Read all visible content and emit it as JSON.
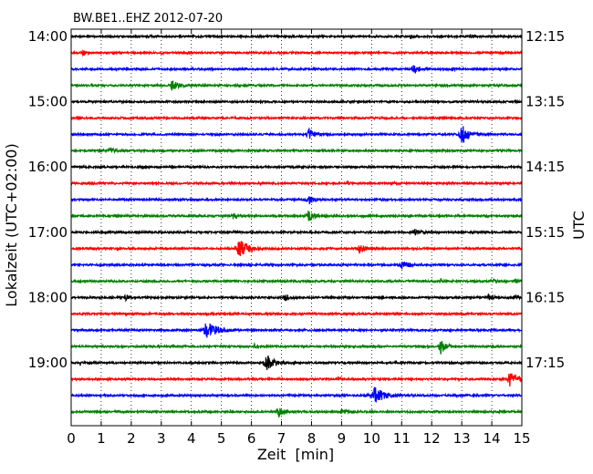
{
  "chart_data": {
    "type": "line",
    "title": "BW.BE1..EHZ 2012-07-20",
    "xlabel": "Zeit  [min]",
    "ylabel_left": "Lokalzeit (UTC+02:00)",
    "ylabel_right": "UTC",
    "xlim": [
      0,
      15
    ],
    "x_ticks": [
      0,
      1,
      2,
      3,
      4,
      5,
      6,
      7,
      8,
      9,
      10,
      11,
      12,
      13,
      14,
      15
    ],
    "x_tick_labels": [
      "0",
      "1",
      "2",
      "3",
      "4",
      "5",
      "6",
      "7",
      "8",
      "9",
      "10",
      "11",
      "12",
      "13",
      "14",
      "15"
    ],
    "y_tick_labels_left": [
      "14:00",
      "15:00",
      "16:00",
      "17:00",
      "18:00",
      "19:00"
    ],
    "y_tick_labels_right": [
      "12:15",
      "13:15",
      "14:15",
      "15:15",
      "16:15",
      "17:15"
    ],
    "grid": "vertical-dotted",
    "trace_colors": [
      "#000000",
      "#ff0000",
      "#0000ff",
      "#008000"
    ],
    "series": [
      {
        "start": "14:00",
        "color": "#000000",
        "events": [
          {
            "t": 2.6,
            "amp": 0.1,
            "dur": 0.12
          },
          {
            "t": 11.3,
            "amp": 0.25,
            "dur": 0.15
          },
          {
            "t": 13.3,
            "amp": 0.3,
            "dur": 0.2
          }
        ]
      },
      {
        "start": "14:15",
        "color": "#ff0000",
        "events": [
          {
            "t": 0.4,
            "amp": 0.45,
            "dur": 0.15
          },
          {
            "t": 3.0,
            "amp": 0.12,
            "dur": 0.1
          }
        ]
      },
      {
        "start": "14:30",
        "color": "#0000ff",
        "events": [
          {
            "t": 8.1,
            "amp": 0.2,
            "dur": 0.1
          },
          {
            "t": 11.4,
            "amp": 0.55,
            "dur": 0.35
          },
          {
            "t": 12.7,
            "amp": 0.3,
            "dur": 0.15
          },
          {
            "t": 15.0,
            "amp": 0.25,
            "dur": 0.1
          }
        ]
      },
      {
        "start": "14:45",
        "color": "#008000",
        "events": [
          {
            "t": 3.35,
            "amp": 0.65,
            "dur": 0.5
          }
        ]
      },
      {
        "start": "15:00",
        "color": "#000000",
        "events": []
      },
      {
        "start": "15:15",
        "color": "#ff0000",
        "events": []
      },
      {
        "start": "15:30",
        "color": "#0000ff",
        "events": [
          {
            "t": 7.9,
            "amp": 0.9,
            "dur": 0.35
          },
          {
            "t": 13.0,
            "amp": 1.4,
            "dur": 0.4
          }
        ]
      },
      {
        "start": "15:45",
        "color": "#008000",
        "events": [
          {
            "t": 1.3,
            "amp": 0.35,
            "dur": 0.4
          },
          {
            "t": 2.3,
            "amp": 0.15,
            "dur": 0.15
          }
        ]
      },
      {
        "start": "16:00",
        "color": "#000000",
        "events": [
          {
            "t": 2.4,
            "amp": 0.12,
            "dur": 0.1
          },
          {
            "t": 7.4,
            "amp": 0.1,
            "dur": 0.1
          }
        ]
      },
      {
        "start": "16:15",
        "color": "#ff0000",
        "events": [
          {
            "t": 6.3,
            "amp": 0.2,
            "dur": 0.1
          },
          {
            "t": 9.2,
            "amp": 0.3,
            "dur": 0.1
          },
          {
            "t": 10.7,
            "amp": 0.2,
            "dur": 0.1
          }
        ]
      },
      {
        "start": "16:30",
        "color": "#0000ff",
        "events": [
          {
            "t": 7.9,
            "amp": 0.6,
            "dur": 0.35
          }
        ]
      },
      {
        "start": "16:45",
        "color": "#008000",
        "events": [
          {
            "t": 5.4,
            "amp": 0.45,
            "dur": 0.3
          },
          {
            "t": 7.9,
            "amp": 0.8,
            "dur": 0.4
          },
          {
            "t": 11.3,
            "amp": 0.15,
            "dur": 0.1
          },
          {
            "t": 13.8,
            "amp": 0.12,
            "dur": 0.1
          }
        ]
      },
      {
        "start": "17:00",
        "color": "#000000",
        "events": [
          {
            "t": 5.4,
            "amp": 0.2,
            "dur": 0.15
          },
          {
            "t": 11.4,
            "amp": 0.45,
            "dur": 0.4
          }
        ]
      },
      {
        "start": "17:15",
        "color": "#ff0000",
        "events": [
          {
            "t": 5.6,
            "amp": 1.3,
            "dur": 0.6
          },
          {
            "t": 9.6,
            "amp": 0.6,
            "dur": 0.4
          }
        ]
      },
      {
        "start": "17:30",
        "color": "#0000ff",
        "events": [
          {
            "t": 11.0,
            "amp": 0.7,
            "dur": 0.4
          }
        ]
      },
      {
        "start": "17:45",
        "color": "#008000",
        "events": [
          {
            "t": 12.3,
            "amp": 0.25,
            "dur": 0.2
          },
          {
            "t": 14.0,
            "amp": 0.3,
            "dur": 0.3
          },
          {
            "t": 14.8,
            "amp": 0.3,
            "dur": 0.15
          }
        ]
      },
      {
        "start": "18:00",
        "color": "#000000",
        "events": [
          {
            "t": 1.8,
            "amp": 0.35,
            "dur": 0.3
          },
          {
            "t": 7.1,
            "amp": 0.6,
            "dur": 0.25
          },
          {
            "t": 13.9,
            "amp": 0.3,
            "dur": 0.3
          },
          {
            "t": 14.8,
            "amp": 0.2,
            "dur": 0.2
          }
        ]
      },
      {
        "start": "18:15",
        "color": "#ff0000",
        "events": [
          {
            "t": 8.0,
            "amp": 0.15,
            "dur": 0.1
          }
        ]
      },
      {
        "start": "18:30",
        "color": "#0000ff",
        "events": [
          {
            "t": 4.5,
            "amp": 1.15,
            "dur": 0.75
          }
        ]
      },
      {
        "start": "18:45",
        "color": "#008000",
        "events": [
          {
            "t": 6.1,
            "amp": 0.3,
            "dur": 0.1
          },
          {
            "t": 12.3,
            "amp": 1.0,
            "dur": 0.35
          }
        ]
      },
      {
        "start": "19:00",
        "color": "#000000",
        "events": [
          {
            "t": 0.3,
            "amp": 0.3,
            "dur": 0.05
          },
          {
            "t": 6.5,
            "amp": 1.1,
            "dur": 0.5
          },
          {
            "t": 12.6,
            "amp": 0.15,
            "dur": 0.1
          }
        ]
      },
      {
        "start": "19:15",
        "color": "#ff0000",
        "events": [
          {
            "t": 8.9,
            "amp": 0.3,
            "dur": 0.1
          },
          {
            "t": 14.6,
            "amp": 1.0,
            "dur": 0.5
          }
        ]
      },
      {
        "start": "19:30",
        "color": "#0000ff",
        "events": [
          {
            "t": 10.1,
            "amp": 1.1,
            "dur": 0.7
          }
        ]
      },
      {
        "start": "19:45",
        "color": "#008000",
        "events": [
          {
            "t": 6.9,
            "amp": 0.65,
            "dur": 0.35
          },
          {
            "t": 9.0,
            "amp": 0.3,
            "dur": 0.35
          }
        ]
      }
    ]
  }
}
